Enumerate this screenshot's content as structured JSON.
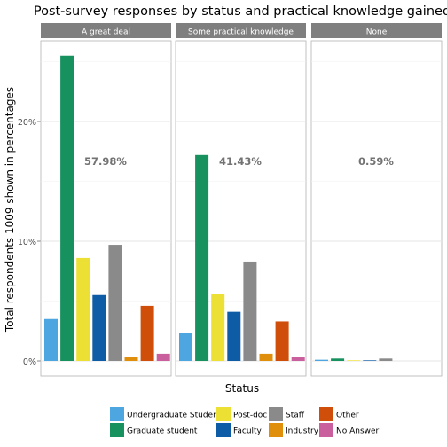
{
  "chart_data": {
    "type": "bar",
    "title": "Post-survey responses by status and practical knowledge gained",
    "xlabel": "Status",
    "ylabel": "Total respondents 1009 shown in percentages",
    "ylim": [
      0,
      0.27
    ],
    "yticks": [
      {
        "value": 0,
        "label": "0%"
      },
      {
        "value": 0.1,
        "label": "10%"
      },
      {
        "value": 0.2,
        "label": "20%"
      }
    ],
    "grid": true,
    "legend_position": "bottom",
    "categories": [
      "Undergraduate Student",
      "Graduate student",
      "Post-doc",
      "Faculty",
      "Staff",
      "Industry",
      "Other",
      "No Answer"
    ],
    "colors": [
      "#4da6e0",
      "#17925f",
      "#ede034",
      "#0e5ca6",
      "#8a8a8a",
      "#e08f0d",
      "#cf4f0a",
      "#c95f9c"
    ],
    "panels": [
      {
        "label": "A great deal",
        "total_label": "57.98%",
        "values": [
          0.035,
          0.255,
          0.086,
          0.055,
          0.097,
          0.003,
          0.046,
          0.006
        ]
      },
      {
        "label": "Some practical knowledge",
        "total_label": "41.43%",
        "values": [
          0.023,
          0.172,
          0.056,
          0.041,
          0.083,
          0.006,
          0.033,
          0.003
        ]
      },
      {
        "label": "None",
        "total_label": "0.59%",
        "values": [
          0.001,
          0.002,
          0.0005,
          0.0005,
          0.002,
          0,
          0,
          0
        ]
      }
    ]
  }
}
